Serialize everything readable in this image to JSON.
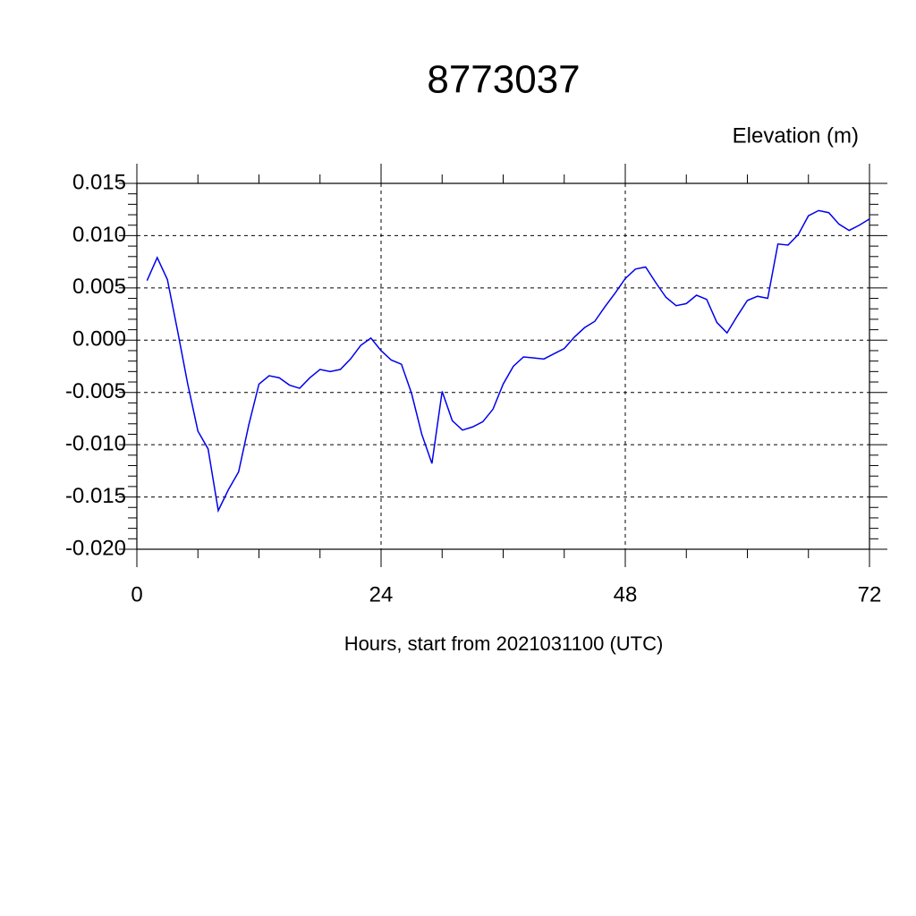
{
  "chart_data": {
    "type": "line",
    "title": "8773037",
    "y_units_label": "Elevation (m)",
    "x_label": "Hours, start from 2021031100 (UTC)",
    "xlim": [
      0,
      72
    ],
    "xticks": [
      0,
      24,
      48,
      72
    ],
    "ylim": [
      -0.02,
      0.015
    ],
    "yticks": [
      {
        "value": -0.02,
        "label": "-0.020"
      },
      -0.015,
      {
        "value": -0.01,
        "label": "-0.010"
      },
      -0.005,
      {
        "value": 0,
        "label": "0.000"
      },
      0.005,
      {
        "value": 0.01,
        "label": "0.010"
      },
      0.015
    ],
    "grid": true,
    "series": [
      {
        "color": "#0000ee",
        "x": [
          1,
          2,
          3,
          4,
          5,
          6,
          7,
          8,
          9,
          10,
          11,
          12,
          13,
          14,
          15,
          16,
          17,
          18,
          19,
          20,
          21,
          22,
          23,
          24,
          25,
          26,
          27,
          28,
          29,
          30,
          31,
          32,
          33,
          34,
          35,
          36,
          37,
          38,
          39,
          40,
          41,
          42,
          43,
          44,
          45,
          46,
          47,
          48,
          49,
          50,
          51,
          52,
          53,
          54,
          55,
          56,
          57,
          58,
          59,
          60,
          61,
          62,
          63,
          64,
          65,
          66,
          67,
          68,
          69,
          70,
          71,
          72
        ],
        "values": [
          0.0057,
          0.0079,
          0.0058,
          0.0009,
          -0.0042,
          -0.0087,
          -0.0104,
          -0.0163,
          -0.0143,
          -0.0126,
          -0.0081,
          -0.0042,
          -0.0034,
          -0.0036,
          -0.0043,
          -0.0046,
          -0.0036,
          -0.0028,
          -0.003,
          -0.0028,
          -0.0018,
          -0.0005,
          0.0002,
          -0.001,
          -0.0019,
          -0.0023,
          -0.0051,
          -0.009,
          -0.0118,
          -0.0049,
          -0.0077,
          -0.0086,
          -0.0083,
          -0.0078,
          -0.0066,
          -0.0042,
          -0.0025,
          -0.0016,
          -0.0017,
          -0.0018,
          -0.0013,
          -0.0008,
          0.0003,
          0.0012,
          0.0018,
          0.0032,
          0.0045,
          0.0059,
          0.0068,
          0.007,
          0.0055,
          0.0041,
          0.0033,
          0.0035,
          0.0043,
          0.0039,
          0.0017,
          0.0007,
          0.0023,
          0.0038,
          0.0042,
          0.004,
          0.0092,
          0.0091,
          0.0101,
          0.0119,
          0.0124,
          0.0122,
          0.0111,
          0.0105,
          0.011,
          0.0116
        ]
      }
    ]
  }
}
